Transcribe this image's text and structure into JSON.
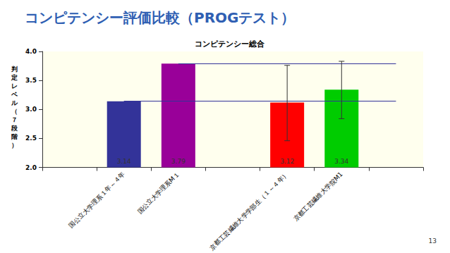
{
  "slide": {
    "title": "コンピテンシー評価比較（PROGテスト）",
    "page": "13"
  },
  "chart_data": {
    "type": "bar",
    "title": "コンピテンシー総合",
    "y_label": "判定レベル（７段階）",
    "categories": [
      null,
      "国公立大学理系１年～４年",
      "国公立大学理系M１",
      null,
      "京都工芸繊維大学学部生（１～４年）",
      "京都工芸繊維大学院M1",
      null
    ],
    "values": [
      null,
      3.14,
      3.79,
      null,
      3.12,
      3.34,
      null
    ],
    "colors": [
      null,
      "#333399",
      "#990099",
      null,
      "#ff0000",
      "#00cc00",
      null
    ],
    "error_low": [
      null,
      null,
      null,
      null,
      2.46,
      2.84,
      null
    ],
    "error_high": [
      null,
      null,
      null,
      null,
      3.76,
      3.83,
      null
    ],
    "reference_lines": [
      3.14,
      3.79
    ],
    "ylim": [
      2,
      4
    ],
    "yticks": [
      {
        "value": 2,
        "label": "2.0"
      },
      {
        "value": 2.5,
        "label": "2.5"
      },
      {
        "value": 3,
        "label": "3.0"
      },
      {
        "value": 3.5,
        "label": "3.5"
      },
      {
        "value": 4,
        "label": "4.0"
      }
    ],
    "data_labels": true,
    "grid": false
  }
}
